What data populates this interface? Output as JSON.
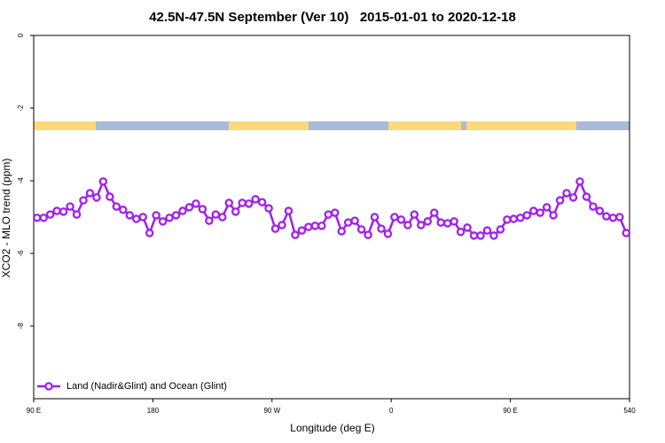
{
  "chart_data": {
    "type": "line",
    "title": "42.5N-47.5N September (Ver 10)   2015-01-01 to 2020-12-18",
    "xlabel": "Longitude (deg E)",
    "ylabel": "XCO2 - MLO trend (ppm)",
    "xlim": [
      90,
      540
    ],
    "ylim": [
      -10,
      0
    ],
    "xticks": [
      {
        "value": 90,
        "label": "90 E"
      },
      180,
      {
        "value": 270,
        "label": "90 W"
      },
      {
        "value": 360,
        "label": "0"
      },
      {
        "value": 450,
        "label": "90 E"
      },
      540
    ],
    "yticks": [
      0,
      -2,
      -4,
      -6,
      -8
    ],
    "legend": "bottom left",
    "x": [
      92.5,
      97.5,
      102.5,
      107.5,
      112.5,
      117.5,
      122.5,
      127.5,
      132.5,
      137.5,
      142.5,
      147.5,
      152.5,
      157.5,
      162.5,
      167.5,
      172.5,
      177.5,
      182.5,
      187.5,
      192.5,
      197.5,
      202.5,
      207.5,
      212.5,
      217.5,
      222.5,
      227.5,
      232.5,
      237.5,
      242.5,
      247.5,
      252.5,
      257.5,
      262.5,
      267.5,
      272.5,
      277.5,
      282.5,
      287.5,
      292.5,
      297.5,
      302.5,
      307.5,
      312.5,
      317.5,
      322.5,
      327.5,
      332.5,
      337.5,
      342.5,
      347.5,
      352.5,
      357.5,
      362.5,
      367.5,
      372.5,
      377.5,
      382.5,
      387.5,
      392.5,
      397.5,
      402.5,
      407.5,
      412.5,
      417.5,
      422.5,
      427.5,
      432.5,
      437.5,
      442.5,
      447.5,
      452.5,
      457.5,
      462.5,
      467.5,
      472.5,
      477.5,
      482.5,
      487.5,
      492.5,
      497.5,
      502.5,
      507.5,
      512.5,
      517.5,
      522.5,
      527.5,
      532.5,
      537.5
    ],
    "series": [
      {
        "name": "Land (Nadir&Glint) and Ocean (Glint)",
        "color": "#a020f0",
        "values": [
          -5.02,
          -5.02,
          -4.93,
          -4.83,
          -4.85,
          -4.71,
          -4.93,
          -4.54,
          -4.34,
          -4.46,
          -4.02,
          -4.44,
          -4.71,
          -4.8,
          -4.95,
          -5.05,
          -5.0,
          -5.44,
          -4.95,
          -5.12,
          -5.02,
          -4.95,
          -4.83,
          -4.73,
          -4.63,
          -4.78,
          -5.1,
          -4.93,
          -5.0,
          -4.61,
          -4.85,
          -4.61,
          -4.63,
          -4.51,
          -4.59,
          -4.76,
          -5.32,
          -5.22,
          -4.83,
          -5.49,
          -5.37,
          -5.27,
          -5.24,
          -5.24,
          -4.93,
          -4.88,
          -5.39,
          -5.15,
          -5.1,
          -5.34,
          -5.49,
          -5.0,
          -5.32,
          -5.46,
          -5.0,
          -5.07,
          -5.22,
          -4.93,
          -5.22,
          -5.12,
          -4.88,
          -5.15,
          -5.17,
          -5.12,
          -5.41,
          -5.29,
          -5.51,
          -5.51,
          -5.37,
          -5.51,
          -5.34,
          -5.07,
          -5.05,
          -5.02,
          -4.95,
          -4.83,
          -4.88,
          -4.73,
          -4.95,
          -4.54,
          -4.34,
          -4.46,
          -4.02,
          -4.44,
          -4.71,
          -4.83,
          -4.98,
          -5.02,
          -5.0,
          -5.44
        ]
      }
    ]
  }
}
